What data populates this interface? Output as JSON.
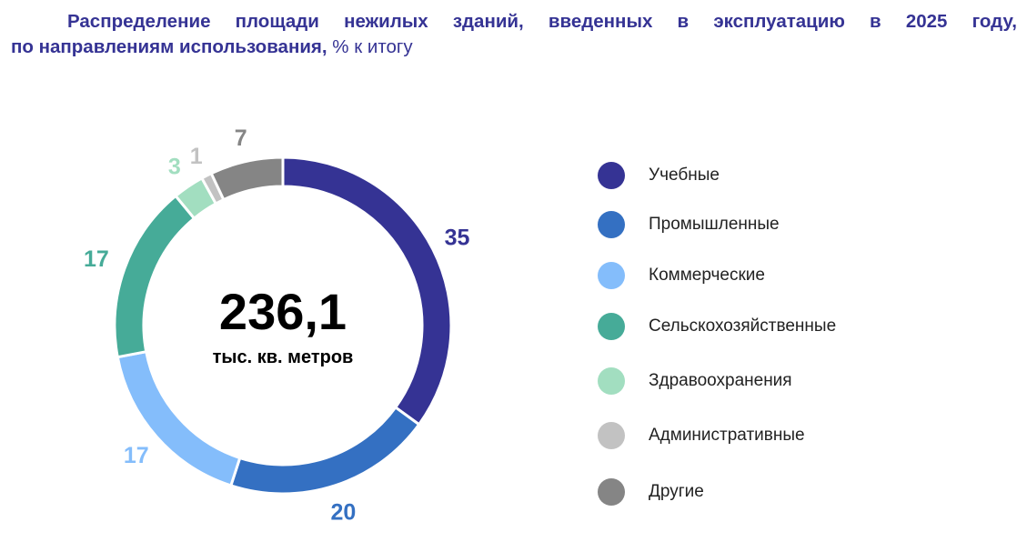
{
  "title": {
    "line1": "Распределение площади нежилых зданий, введенных в эксплуатацию в 2025 году,",
    "line2_bold": "по направлениям использования,",
    "line2_unit": " % к итогу"
  },
  "center": {
    "value": "236,1",
    "unit": "тыс. кв. метров"
  },
  "chart_data": {
    "type": "pie",
    "donut": true,
    "categories": [
      "Учебные",
      "Промышленные",
      "Коммерческие",
      "Сельскохозяйственные",
      "Здравоохранения",
      "Административные",
      "Другие"
    ],
    "values": [
      35,
      20,
      17,
      17,
      3,
      1,
      7
    ],
    "value_labels": [
      "35",
      "20",
      "17",
      "17",
      "3",
      "1",
      "7"
    ],
    "colors": [
      "#353394",
      "#3470C2",
      "#84BDFB",
      "#46AB98",
      "#A2DEC0",
      "#C2C2C2",
      "#858585"
    ],
    "legend_position": "right"
  }
}
